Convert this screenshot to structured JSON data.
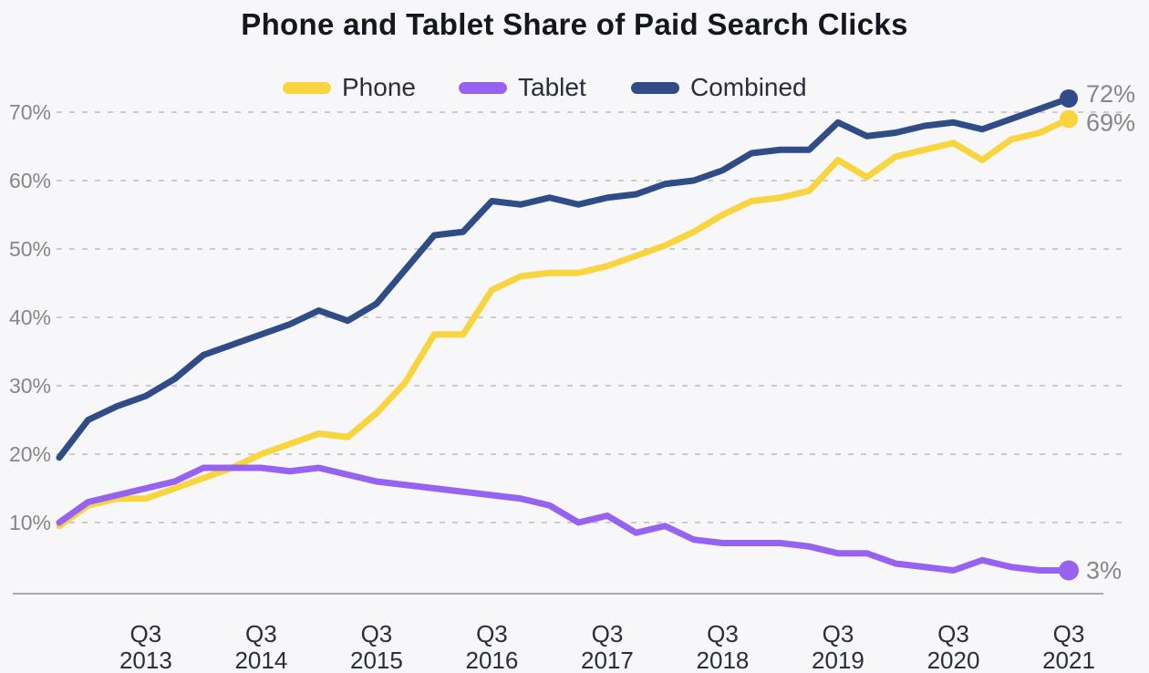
{
  "title": "Phone and Tablet Share of Paid Search Clicks",
  "colors": {
    "background": "#F7F7F9",
    "title_text": "#14171F",
    "axis_text": "#2A2E3C",
    "muted_text": "#85858C",
    "gridline": "#CBCBD0",
    "axis_line": "#A8A8AD",
    "phone": "#F8D43F",
    "tablet": "#9663F0",
    "combined": "#2F4C86"
  },
  "chart_data": {
    "type": "line",
    "unit": "%",
    "grid": "dashed-horizontal",
    "legend_position": "top-center",
    "ylim": [
      10,
      70
    ],
    "x_quarters": [
      "Q4 2012",
      "Q1 2013",
      "Q2 2013",
      "Q3 2013",
      "Q4 2013",
      "Q1 2014",
      "Q2 2014",
      "Q3 2014",
      "Q4 2014",
      "Q1 2015",
      "Q2 2015",
      "Q3 2015",
      "Q4 2015",
      "Q1 2016",
      "Q2 2016",
      "Q3 2016",
      "Q4 2016",
      "Q1 2017",
      "Q2 2017",
      "Q3 2017",
      "Q4 2017",
      "Q1 2018",
      "Q2 2018",
      "Q3 2018",
      "Q4 2018",
      "Q1 2019",
      "Q2 2019",
      "Q3 2019",
      "Q4 2019",
      "Q1 2020",
      "Q2 2020",
      "Q3 2020",
      "Q4 2020",
      "Q1 2021",
      "Q2 2021",
      "Q3 2021"
    ],
    "series": [
      {
        "name": "Phone",
        "color": "#F8D43F",
        "end_label": "69%",
        "end_value": 69,
        "values": [
          9.5,
          12.5,
          13.5,
          13.5,
          15,
          16.5,
          18,
          20,
          21.5,
          23,
          22.5,
          26,
          30.5,
          37.5,
          37.5,
          44,
          46,
          46.5,
          46.5,
          47.5,
          49,
          50.5,
          52.5,
          55,
          57,
          57.5,
          58.5,
          63,
          60.5,
          63.5,
          64.5,
          65.5,
          63,
          66,
          67,
          69
        ]
      },
      {
        "name": "Tablet",
        "color": "#9663F0",
        "end_label": "3%",
        "end_value": 3,
        "values": [
          10,
          13,
          14,
          15,
          16,
          18,
          18,
          18,
          17.5,
          18,
          17,
          16,
          15.5,
          15,
          14.5,
          14,
          13.5,
          12.5,
          10,
          11,
          8.5,
          9.5,
          7.5,
          7,
          7,
          7,
          6.5,
          5.5,
          5.5,
          4,
          3.5,
          3,
          4.5,
          3.5,
          3,
          3
        ]
      },
      {
        "name": "Combined",
        "color": "#2F4C86",
        "end_label": "72%",
        "end_value": 72,
        "values": [
          19.5,
          25,
          27,
          28.5,
          31,
          34.5,
          36,
          37.5,
          39,
          41,
          39.5,
          42,
          47,
          52,
          52.5,
          57,
          56.5,
          57.5,
          56.5,
          57.5,
          58,
          59.5,
          60,
          61.5,
          64,
          64.5,
          64.5,
          68.5,
          66.5,
          67,
          68,
          68.5,
          67.5,
          69,
          70.5,
          72
        ]
      }
    ],
    "draw_order": [
      2,
      0,
      1
    ],
    "y_ticks": [
      {
        "value": 10,
        "label": "10%"
      },
      {
        "value": 20,
        "label": "20%"
      },
      {
        "value": 30,
        "label": "30%"
      },
      {
        "value": 40,
        "label": "40%"
      },
      {
        "value": 50,
        "label": "50%"
      },
      {
        "value": 60,
        "label": "60%"
      },
      {
        "value": 70,
        "label": "70%"
      }
    ],
    "x_ticks": [
      {
        "index": 3,
        "quarter": "Q3",
        "year": "2013"
      },
      {
        "index": 7,
        "quarter": "Q3",
        "year": "2014"
      },
      {
        "index": 11,
        "quarter": "Q3",
        "year": "2015"
      },
      {
        "index": 15,
        "quarter": "Q3",
        "year": "2016"
      },
      {
        "index": 19,
        "quarter": "Q3",
        "year": "2017"
      },
      {
        "index": 23,
        "quarter": "Q3",
        "year": "2018"
      },
      {
        "index": 27,
        "quarter": "Q3",
        "year": "2019"
      },
      {
        "index": 31,
        "quarter": "Q3",
        "year": "2020"
      },
      {
        "index": 35,
        "quarter": "Q3",
        "year": "2021"
      }
    ]
  }
}
